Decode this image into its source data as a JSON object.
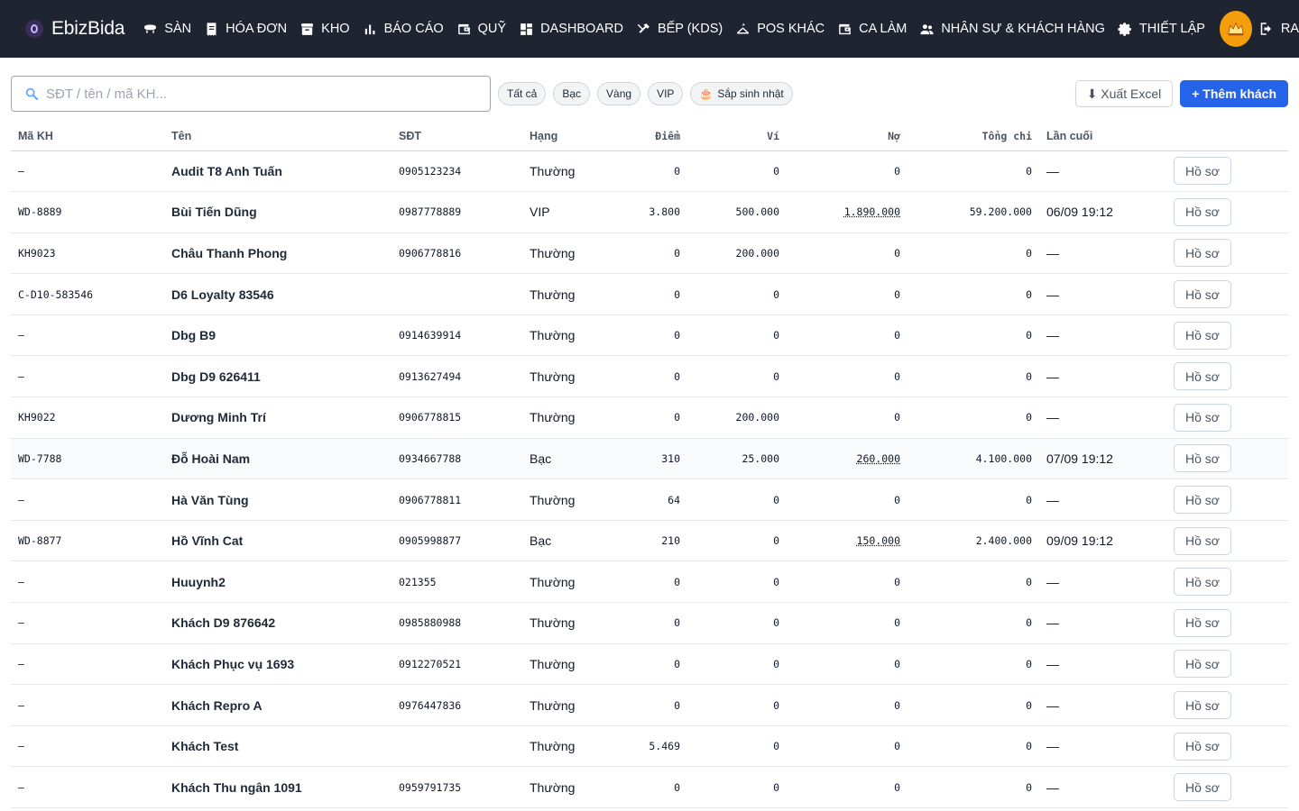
{
  "app": {
    "name": "EbizBida"
  },
  "nav": [
    {
      "label": "SÀN",
      "icon": "table-icon"
    },
    {
      "label": "HÓA ĐƠN",
      "icon": "receipt-icon"
    },
    {
      "label": "KHO",
      "icon": "warehouse-icon"
    },
    {
      "label": "BÁO CÁO",
      "icon": "bar-chart-icon"
    },
    {
      "label": "QUỸ",
      "icon": "wallet-icon"
    },
    {
      "label": "DASHBOARD",
      "icon": "dashboard-icon"
    },
    {
      "label": "BẾP (KDS)",
      "icon": "utensils-icon"
    },
    {
      "label": "POS KHÁC",
      "icon": "hanger-icon"
    },
    {
      "label": "CA LÀM",
      "icon": "wallet-icon"
    },
    {
      "label": "NHÂN SỰ & KHÁCH HÀNG",
      "icon": "people-icon"
    },
    {
      "label": "THIẾT LẬP",
      "icon": "gear-icon"
    }
  ],
  "logout_label": "RA",
  "search": {
    "placeholder": "SĐT / tên / mã KH..."
  },
  "filters": [
    "Tất cả",
    "Bạc",
    "Vàng",
    "VIP"
  ],
  "birthday_filter": "Sắp sinh nhật",
  "export_label": "⬇ Xuất Excel",
  "add_label": "+ Thêm khách",
  "columns": {
    "code": "Mã KH",
    "name": "Tên",
    "phone": "SĐT",
    "tier": "Hạng",
    "points": "Điểm",
    "wallet": "Ví",
    "debt": "Nợ",
    "total": "Tổng chi",
    "last": "Lần cuối"
  },
  "profile_label": "Hồ sơ",
  "rows": [
    {
      "code": "—",
      "name": "Audit T8 Anh Tuấn",
      "phone": "0905123234",
      "tier": "Thường",
      "points": "0",
      "wallet": "0",
      "debt": "0",
      "total": "0",
      "last": "—"
    },
    {
      "code": "WD-8889",
      "name": "Bùi Tiến Dũng",
      "phone": "0987778889",
      "tier": "VIP",
      "points": "3.800",
      "wallet": "500.000",
      "debt": "1.890.000",
      "total": "59.200.000",
      "last": "06/09 19:12"
    },
    {
      "code": "KH9023",
      "name": "Châu Thanh Phong",
      "phone": "0906778816",
      "tier": "Thường",
      "points": "0",
      "wallet": "200.000",
      "debt": "0",
      "total": "0",
      "last": "—"
    },
    {
      "code": "C-D10-583546",
      "name": "D6 Loyalty 83546",
      "phone": "",
      "tier": "Thường",
      "points": "0",
      "wallet": "0",
      "debt": "0",
      "total": "0",
      "last": "—"
    },
    {
      "code": "—",
      "name": "Dbg B9",
      "phone": "0914639914",
      "tier": "Thường",
      "points": "0",
      "wallet": "0",
      "debt": "0",
      "total": "0",
      "last": "—"
    },
    {
      "code": "—",
      "name": "Dbg D9 626411",
      "phone": "0913627494",
      "tier": "Thường",
      "points": "0",
      "wallet": "0",
      "debt": "0",
      "total": "0",
      "last": "—"
    },
    {
      "code": "KH9022",
      "name": "Dương Minh Trí",
      "phone": "0906778815",
      "tier": "Thường",
      "points": "0",
      "wallet": "200.000",
      "debt": "0",
      "total": "0",
      "last": "—"
    },
    {
      "code": "WD-7788",
      "name": "Đỗ Hoài Nam",
      "phone": "0934667788",
      "tier": "Bạc",
      "points": "310",
      "wallet": "25.000",
      "debt": "260.000",
      "total": "4.100.000",
      "last": "07/09 19:12"
    },
    {
      "code": "—",
      "name": "Hà Văn Tùng",
      "phone": "0906778811",
      "tier": "Thường",
      "points": "64",
      "wallet": "0",
      "debt": "0",
      "total": "0",
      "last": "—"
    },
    {
      "code": "WD-8877",
      "name": "Hồ Vĩnh Cat",
      "phone": "0905998877",
      "tier": "Bạc",
      "points": "210",
      "wallet": "0",
      "debt": "150.000",
      "total": "2.400.000",
      "last": "09/09 19:12"
    },
    {
      "code": "—",
      "name": "Huuynh2",
      "phone": "021355",
      "tier": "Thường",
      "points": "0",
      "wallet": "0",
      "debt": "0",
      "total": "0",
      "last": "—"
    },
    {
      "code": "—",
      "name": "Khách D9 876642",
      "phone": "0985880988",
      "tier": "Thường",
      "points": "0",
      "wallet": "0",
      "debt": "0",
      "total": "0",
      "last": "—"
    },
    {
      "code": "—",
      "name": "Khách Phục vụ 1693",
      "phone": "0912270521",
      "tier": "Thường",
      "points": "0",
      "wallet": "0",
      "debt": "0",
      "total": "0",
      "last": "—"
    },
    {
      "code": "—",
      "name": "Khách Repro A",
      "phone": "0976447836",
      "tier": "Thường",
      "points": "0",
      "wallet": "0",
      "debt": "0",
      "total": "0",
      "last": "—"
    },
    {
      "code": "—",
      "name": "Khách Test",
      "phone": "",
      "tier": "Thường",
      "points": "5.469",
      "wallet": "0",
      "debt": "0",
      "total": "0",
      "last": "—"
    },
    {
      "code": "—",
      "name": "Khách Thu ngân 1091",
      "phone": "0959791735",
      "tier": "Thường",
      "points": "0",
      "wallet": "0",
      "debt": "0",
      "total": "0",
      "last": "—"
    }
  ],
  "colors": {
    "nav_bg": "#1e2530",
    "accent": "#2563eb",
    "avatar": "#f59e0b"
  }
}
